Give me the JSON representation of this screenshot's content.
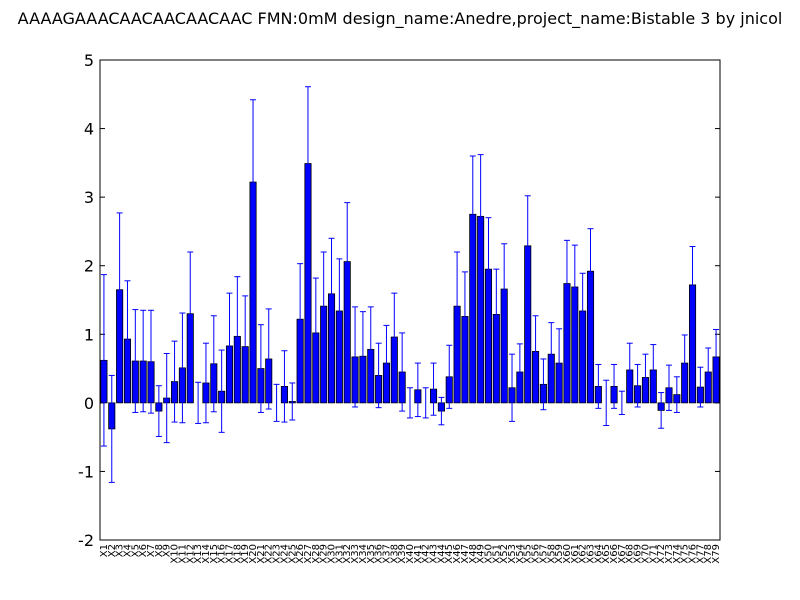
{
  "chart_data": {
    "type": "bar",
    "title": "AAAAGAAACAACAACAACAAC  FMN:0mM  design_name:Anedre,project_name:Bistable 3 by jnicol",
    "categories": [
      "X1",
      "X2",
      "X3",
      "X4",
      "X5",
      "X6",
      "X7",
      "X8",
      "X9",
      "X10",
      "X11",
      "X12",
      "X13",
      "X14",
      "X15",
      "X16",
      "X17",
      "X18",
      "X19",
      "X20",
      "X21",
      "X22",
      "X23",
      "X24",
      "X25",
      "X26",
      "X27",
      "X28",
      "X29",
      "X30",
      "X31",
      "X32",
      "X33",
      "X34",
      "X35",
      "X36",
      "X37",
      "X38",
      "X39",
      "X40",
      "X41",
      "X42",
      "X43",
      "X44",
      "X45",
      "X46",
      "X47",
      "X48",
      "X49",
      "X50",
      "X51",
      "X52",
      "X53",
      "X54",
      "X55",
      "X56",
      "X57",
      "X58",
      "X59",
      "X60",
      "X61",
      "X62",
      "X63",
      "X64",
      "X65",
      "X66",
      "X67",
      "X68",
      "X69",
      "X70",
      "X71",
      "X72",
      "X73",
      "X74",
      "X75",
      "X76",
      "X77",
      "X78",
      "X79"
    ],
    "values": [
      0.62,
      -0.38,
      1.65,
      0.93,
      0.61,
      0.61,
      0.6,
      -0.12,
      0.07,
      0.31,
      0.51,
      1.3,
      0,
      0.29,
      0.57,
      0.17,
      0.83,
      0.97,
      0.82,
      3.22,
      0.5,
      0.64,
      0,
      0.24,
      0.02,
      1.22,
      3.49,
      1.02,
      1.41,
      1.59,
      1.34,
      2.06,
      0.67,
      0.68,
      0.78,
      0.4,
      0.58,
      0.96,
      0.45,
      0,
      0.19,
      0,
      0.2,
      -0.12,
      0.38,
      1.41,
      1.26,
      2.75,
      2.72,
      1.95,
      1.29,
      1.66,
      0.22,
      0.45,
      2.29,
      0.75,
      0.27,
      0.71,
      0.58,
      1.74,
      1.69,
      1.34,
      1.92,
      0.24,
      0,
      0.24,
      0,
      0.48,
      0.25,
      0.37,
      0.48,
      -0.11,
      0.22,
      0.12,
      0.58,
      1.72,
      0.23,
      0.45,
      0.67
    ],
    "errors": [
      1.25,
      0.78,
      1.12,
      0.85,
      0.75,
      0.74,
      0.75,
      0.37,
      0.65,
      0.59,
      0.8,
      0.9,
      0.3,
      0.58,
      0.7,
      0.6,
      0.77,
      0.87,
      0.74,
      1.2,
      0.64,
      0.73,
      0.27,
      0.52,
      0.27,
      0.81,
      1.12,
      0.8,
      0.79,
      0.81,
      0.76,
      0.86,
      0.73,
      0.65,
      0.62,
      0.47,
      0.55,
      0.64,
      0.57,
      0.22,
      0.39,
      0.22,
      0.38,
      0.2,
      0.46,
      0.79,
      0.65,
      0.85,
      0.9,
      0.75,
      0.66,
      0.66,
      0.49,
      0.41,
      0.73,
      0.52,
      0.37,
      0.46,
      0.5,
      0.63,
      0.61,
      0.55,
      0.62,
      0.32,
      0.33,
      0.32,
      0.17,
      0.39,
      0.31,
      0.34,
      0.37,
      0.26,
      0.33,
      0.26,
      0.41,
      0.56,
      0.29,
      0.35,
      0.4
    ],
    "color": "#0000ff",
    "error_color": "#0000ff",
    "ylim": [
      -2,
      5
    ],
    "yticks": [
      -2,
      -1,
      0,
      1,
      2,
      3,
      4,
      5
    ]
  }
}
